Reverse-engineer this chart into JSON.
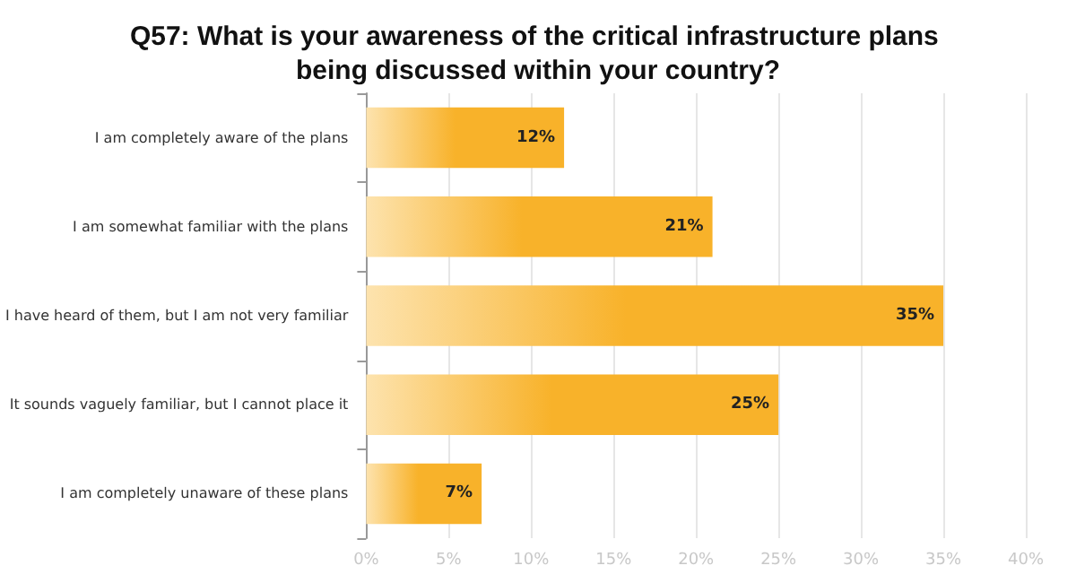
{
  "chart_data": {
    "type": "bar",
    "orientation": "horizontal",
    "title": "Q57: What is your awareness of the critical infrastructure plans being discussed within your country?",
    "categories": [
      "I am completely aware of the plans",
      "I am somewhat familiar with the plans",
      "I have heard of them, but I am not very familiar",
      "It sounds vaguely familiar, but I cannot place it",
      "I am completely unaware of these plans"
    ],
    "values": [
      12,
      21,
      35,
      25,
      7
    ],
    "value_labels": [
      "12%",
      "21%",
      "35%",
      "25%",
      "7%"
    ],
    "color": "#f8b22a",
    "xlim": [
      0,
      40
    ],
    "xticks": [
      {
        "value": 0,
        "label": "0%"
      },
      {
        "value": 5,
        "label": "5%"
      },
      {
        "value": 10,
        "label": "10%"
      },
      {
        "value": 15,
        "label": "15%"
      },
      {
        "value": 20,
        "label": "20%"
      },
      {
        "value": 25,
        "label": "25%"
      },
      {
        "value": 30,
        "label": "30%"
      },
      {
        "value": 35,
        "label": "35%"
      },
      {
        "value": 40,
        "label": "40%"
      }
    ],
    "grid": "x"
  }
}
